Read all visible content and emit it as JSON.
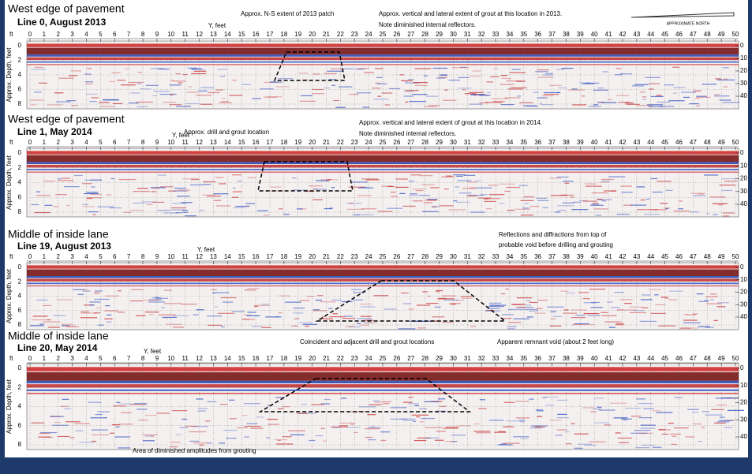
{
  "slide": {
    "panels": [
      {
        "heading": "West edge of pavement",
        "line": "Line 0, August 2013",
        "x_label": "Y, feet",
        "depth_label": "Approx. Depth, feet",
        "unit": "ft",
        "annotations": [
          "Approx. N-S extent of 2013 patch",
          "Approx. vertical and lateral extent of grout at this location in 2013.",
          "Note diminished internal reflectors."
        ]
      },
      {
        "heading": "West edge of pavement",
        "line": "Line 1, May 2014",
        "x_label": "Y, feet",
        "depth_label": "Approx. Depth, feet",
        "unit": "ft",
        "annotations": [
          "Approx. drill and grout location",
          "Approx. vertical and lateral extent of grout at this location in 2014.",
          "Note diminished internal reflectors."
        ]
      },
      {
        "heading": "Middle of inside lane",
        "line": "Line 19, August 2013",
        "x_label": "Y, feet",
        "depth_label": "Approx. Depth, feet",
        "unit": "ft",
        "annotations": [
          "Reflections and diffractions from top of",
          "probable void before drilling and grouting"
        ]
      },
      {
        "heading": "Middle of inside lane",
        "line": "Line 20, May 2014",
        "x_label": "Y, feet",
        "depth_label": "Approx. Depth, feet",
        "unit": "ft",
        "annotations": [
          "Coincident and adjacent drill and grout locations",
          "Apparent remnant void (about 2 feet long)",
          "Area of diminished amplitudes from grouting"
        ]
      }
    ],
    "north_label": "APPROXIMATE NORTH",
    "x_ticks": [
      0,
      1,
      2,
      3,
      4,
      5,
      6,
      7,
      8,
      9,
      10,
      11,
      12,
      13,
      14,
      15,
      16,
      17,
      18,
      19,
      20,
      21,
      22,
      23,
      24,
      25,
      26,
      27,
      28,
      29,
      30,
      31,
      32,
      33,
      34,
      35,
      36,
      37,
      38,
      39,
      40,
      41,
      42,
      43,
      44,
      45,
      46,
      47,
      48,
      49,
      50
    ],
    "depth_ticks": [
      0,
      2,
      4,
      6,
      8
    ],
    "time_ticks": [
      0,
      10,
      20,
      30,
      40
    ]
  }
}
